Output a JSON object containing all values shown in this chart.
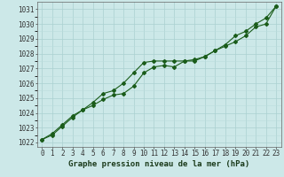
{
  "xlabel": "Graphe pression niveau de la mer (hPa)",
  "hours": [
    0,
    1,
    2,
    3,
    4,
    5,
    6,
    7,
    8,
    9,
    10,
    11,
    12,
    13,
    14,
    15,
    16,
    17,
    18,
    19,
    20,
    21,
    22,
    23
  ],
  "line1": [
    1022.2,
    1022.6,
    1023.2,
    1023.8,
    1024.2,
    1024.7,
    1025.3,
    1025.5,
    1026.0,
    1026.7,
    1027.4,
    1027.5,
    1027.5,
    1027.5,
    1027.5,
    1027.5,
    1027.8,
    1028.2,
    1028.6,
    1029.2,
    1029.5,
    1030.0,
    1030.4,
    1031.2
  ],
  "line2": [
    1022.2,
    1022.5,
    1023.1,
    1023.7,
    1024.2,
    1024.5,
    1024.9,
    1025.2,
    1025.3,
    1025.8,
    1026.7,
    1027.1,
    1027.2,
    1027.1,
    1027.5,
    1027.6,
    1027.8,
    1028.2,
    1028.5,
    1028.8,
    1029.2,
    1029.8,
    1030.0,
    1031.2
  ],
  "ylim_min": 1021.7,
  "ylim_max": 1031.5,
  "yticks": [
    1022,
    1023,
    1024,
    1025,
    1026,
    1027,
    1028,
    1029,
    1030,
    1031
  ],
  "bg_color": "#cce8e8",
  "grid_major_color": "#aad0d0",
  "grid_minor_color": "#bbdcdc",
  "line_color": "#1a5c1a",
  "marker": "D",
  "marker_size": 2.0,
  "line_width": 0.8,
  "tick_fontsize": 5.5,
  "label_fontsize": 6.5
}
